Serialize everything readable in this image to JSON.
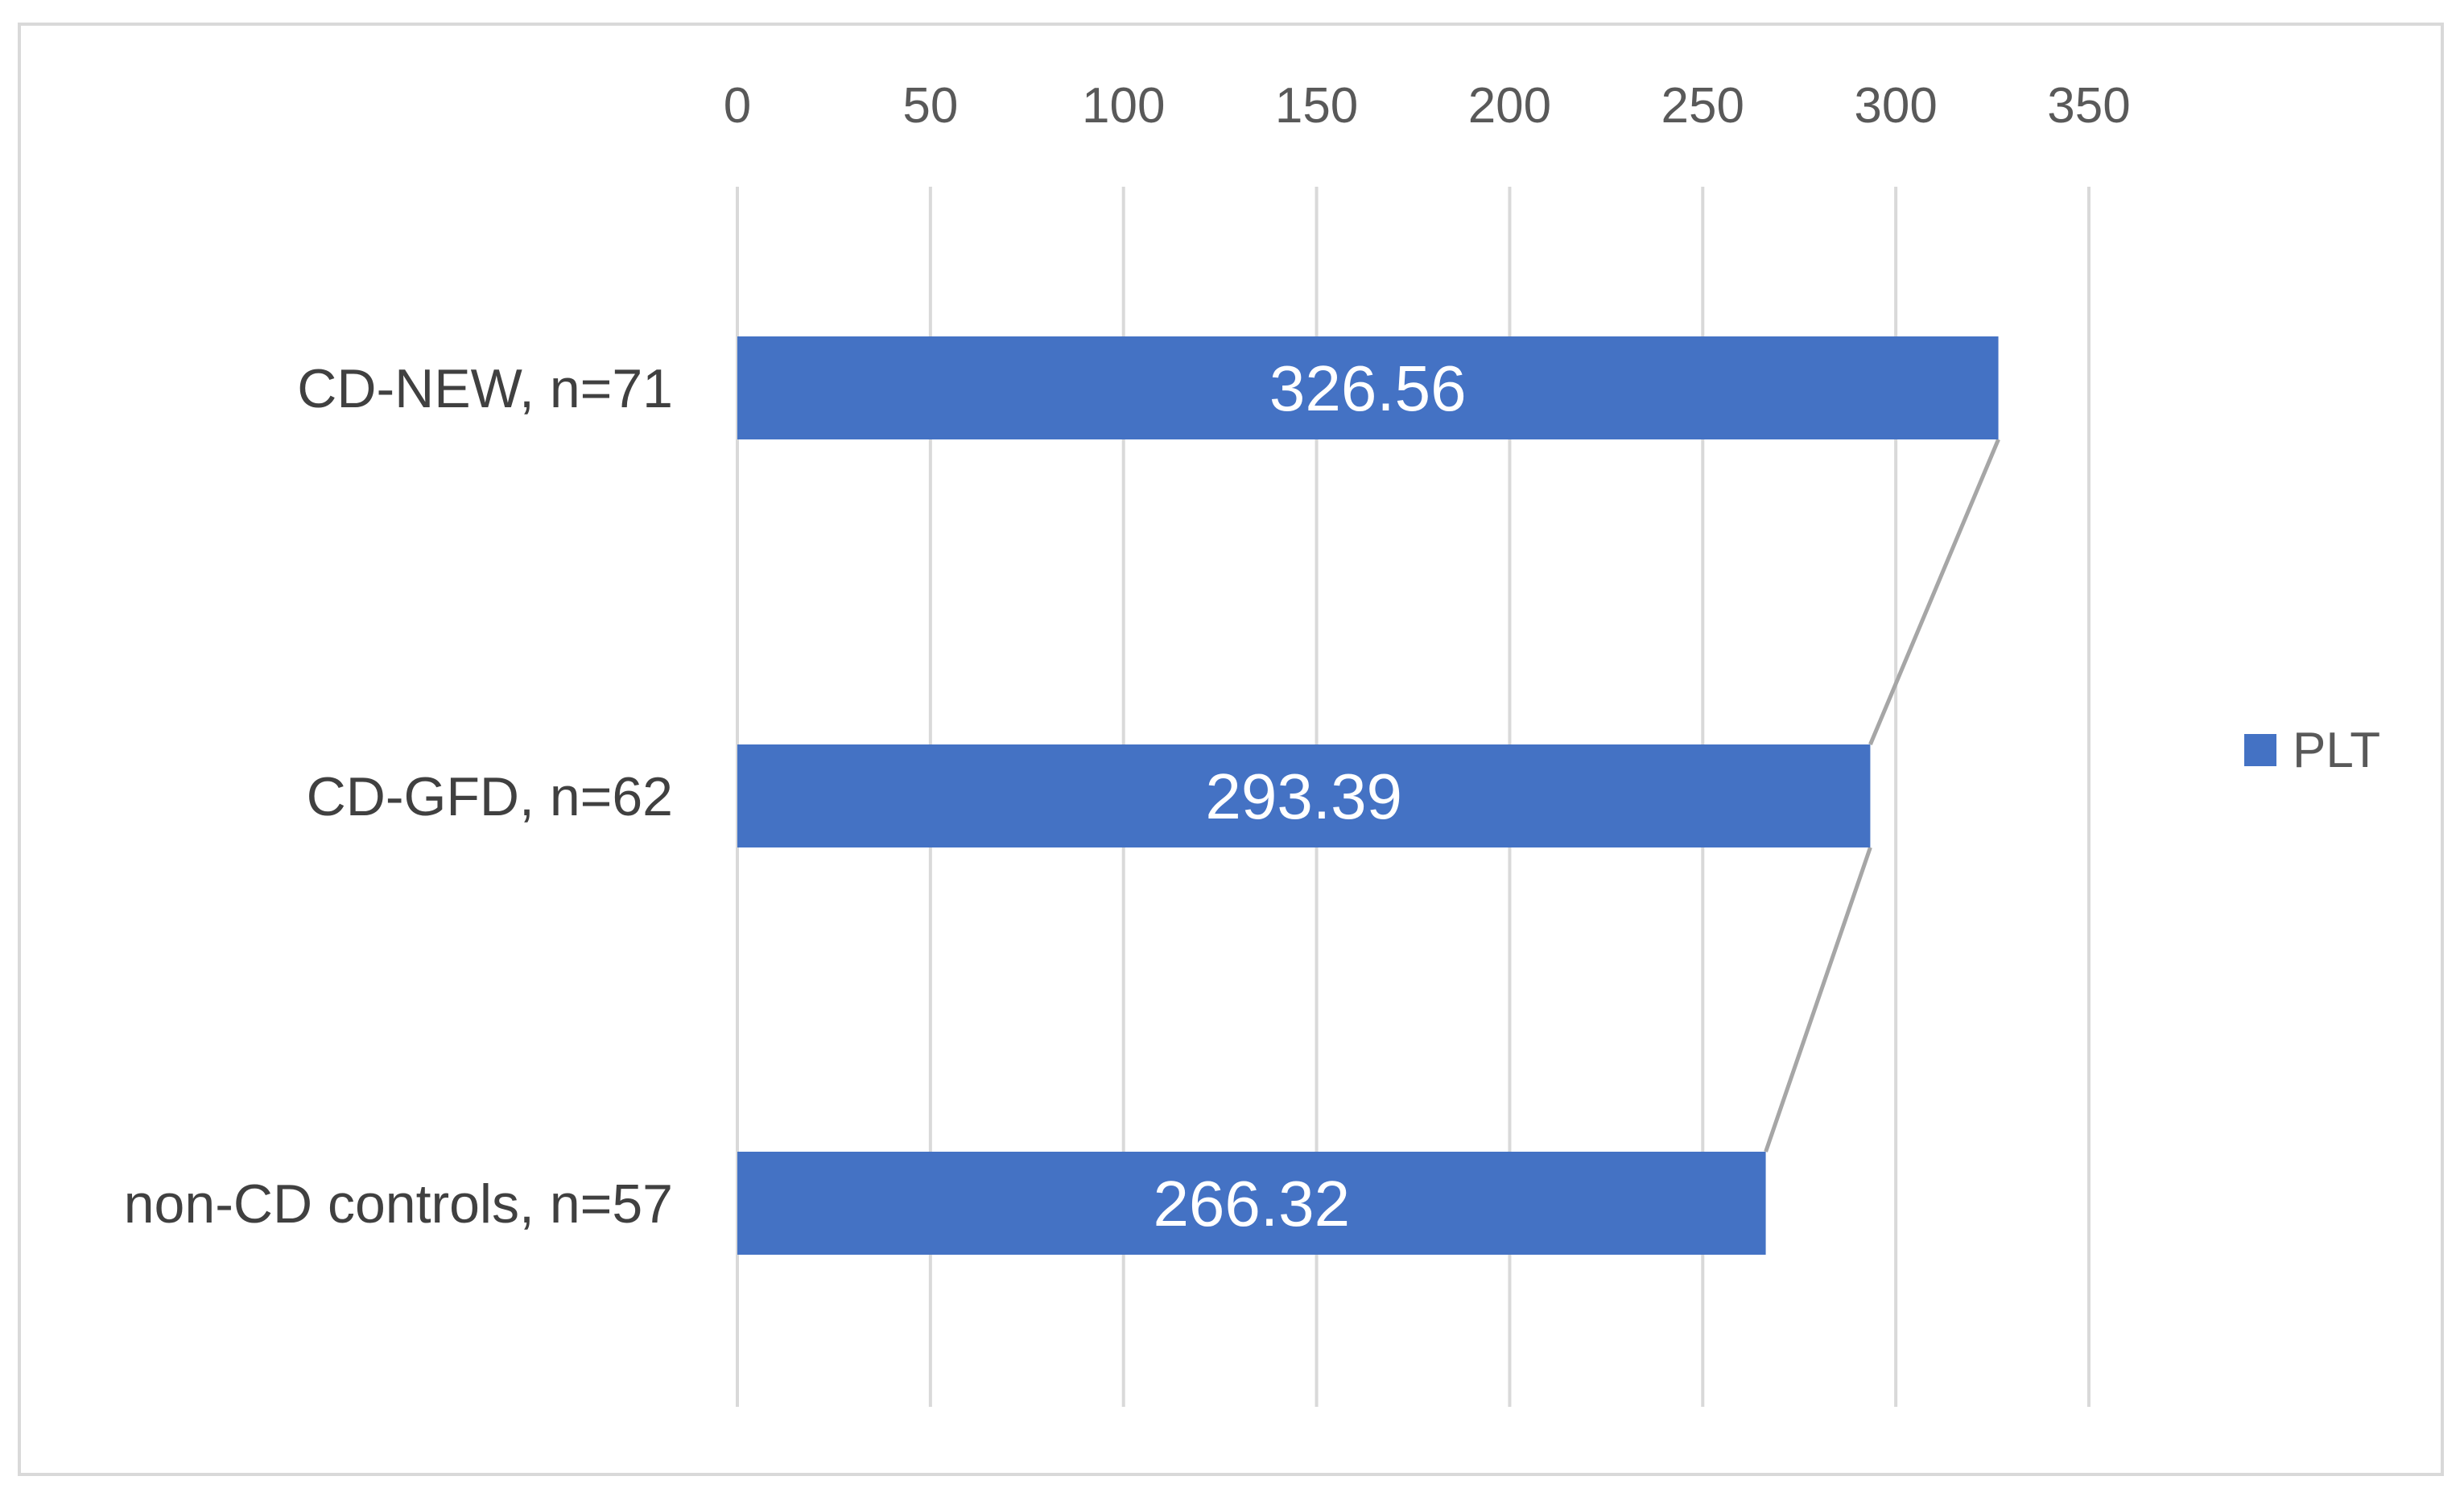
{
  "chart_data": {
    "type": "bar",
    "orientation": "horizontal",
    "categories": [
      "CD-NEW, n=71",
      "CD-GFD, n=62",
      "non-CD controls, n=57"
    ],
    "series": [
      {
        "name": "PLT",
        "values": [
          326.56,
          293.39,
          266.32
        ],
        "data_labels": [
          "326.56",
          "293.39",
          "266.32"
        ]
      }
    ],
    "xlim": [
      0,
      350
    ],
    "x_ticks": [
      0,
      50,
      100,
      150,
      200,
      250,
      300,
      350
    ],
    "x_tick_labels": [
      "0",
      "50",
      "100",
      "150",
      "200",
      "250",
      "300",
      "350"
    ],
    "x_axis_position": "top",
    "grid": true,
    "series_lines": true,
    "legend_position": "right",
    "title": "",
    "xlabel": "",
    "ylabel": ""
  },
  "colors": {
    "bar": "#4472c4",
    "grid": "#d9d9d9",
    "series_line": "#a6a6a6",
    "tick_text": "#595959",
    "category_text": "#404040",
    "data_label_text": "#ffffff"
  }
}
